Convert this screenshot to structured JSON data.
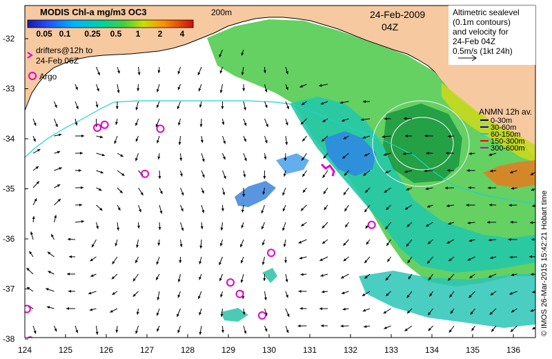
{
  "title": "MODIS Chl-a mg/m3 OC3",
  "colorbar_ticks": [
    "0.05",
    "0.1",
    "0.25",
    "0.5",
    "1",
    "2",
    "4"
  ],
  "isobath_label": "200m",
  "date": "24-Feb-2009",
  "time": "04Z",
  "altimetry_note": [
    "Altimetric sealevel",
    "(0.1m contours)",
    "and velocity for",
    "24-Feb 04Z",
    "0.5m/s (1kt 24h)"
  ],
  "drifters_note": [
    "drifters@12h to",
    "24-Feb 06Z"
  ],
  "argo_label": "Argo",
  "anmn_title": "ANMN 12h av.",
  "anmn_legend": [
    {
      "label": "0-30m",
      "color": "#000080"
    },
    {
      "label": "30-60m",
      "color": "#0000ff"
    },
    {
      "label": "60-150m",
      "color": "#00c8ff"
    },
    {
      "label": "150-300m",
      "color": "#ff0000"
    },
    {
      "label": "300-600m",
      "color": "#cc00cc"
    }
  ],
  "credit": "© IMOS 26-Mar-2015 15:42:21 Hobart time",
  "lat_labels": [
    "-32",
    "-33",
    "-34",
    "-35",
    "-36",
    "-37",
    "-38"
  ],
  "lon_labels": [
    "124",
    "125",
    "126",
    "127",
    "128",
    "129",
    "130",
    "131",
    "132",
    "133",
    "134",
    "135",
    "136"
  ],
  "argo_floats": [
    {
      "lon": 125.78,
      "lat": -33.78
    },
    {
      "lon": 125.96,
      "lat": -33.72
    },
    {
      "lon": 127.33,
      "lat": -33.8
    },
    {
      "lon": 126.95,
      "lat": -34.7
    },
    {
      "lon": 132.52,
      "lat": -35.72
    },
    {
      "lon": 130.05,
      "lat": -36.28
    },
    {
      "lon": 129.05,
      "lat": -36.87
    },
    {
      "lon": 129.28,
      "lat": -37.1
    },
    {
      "lon": 129.83,
      "lat": -37.53
    },
    {
      "lon": 124.05,
      "lat": -37.4
    },
    {
      "lon": 124.13,
      "lat": -38.03
    }
  ],
  "colors": {
    "land": "#f6c9a0",
    "ocean": "#ffffff",
    "isobath": "#22d0d0",
    "sealevel_contour": "#e6e6e6"
  }
}
